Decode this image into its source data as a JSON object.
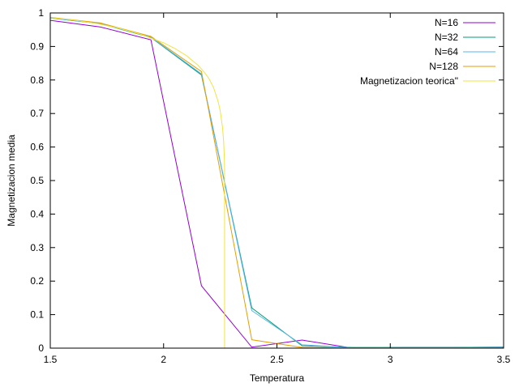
{
  "chart_data": {
    "type": "line",
    "xlabel": "Temperatura",
    "ylabel": "Magnetizacion media",
    "xlim": [
      1.5,
      3.5
    ],
    "ylim": [
      0,
      1
    ],
    "xticks": [
      {
        "v": 1.5,
        "label": "1.5"
      },
      {
        "v": 2,
        "label": "2"
      },
      {
        "v": 2.5,
        "label": "2.5"
      },
      {
        "v": 3,
        "label": "3"
      },
      {
        "v": 3.5,
        "label": "3.5"
      }
    ],
    "yticks": [
      {
        "v": 0,
        "label": "0"
      },
      {
        "v": 0.1,
        "label": "0.1"
      },
      {
        "v": 0.2,
        "label": "0.2"
      },
      {
        "v": 0.3,
        "label": "0.3"
      },
      {
        "v": 0.4,
        "label": "0.4"
      },
      {
        "v": 0.5,
        "label": "0.5"
      },
      {
        "v": 0.6,
        "label": "0.6"
      },
      {
        "v": 0.7,
        "label": "0.7"
      },
      {
        "v": 0.8,
        "label": "0.8"
      },
      {
        "v": 0.9,
        "label": "0.9"
      },
      {
        "v": 1,
        "label": "1"
      }
    ],
    "grid": false,
    "legend_position": "top-right",
    "series": [
      {
        "name": "N=16",
        "color": "#9400d3",
        "x": [
          1.5,
          1.722,
          1.944,
          2.167,
          2.389,
          2.611,
          2.833,
          3.056,
          3.278,
          3.5
        ],
        "y": [
          0.978,
          0.958,
          0.92,
          0.186,
          0.003,
          0.024,
          0.0,
          0.002,
          0.002,
          0.003
        ]
      },
      {
        "name": "N=32",
        "color": "#009e73",
        "x": [
          1.5,
          1.722,
          1.944,
          2.167,
          2.389,
          2.611,
          2.833,
          3.056,
          3.278,
          3.5
        ],
        "y": [
          0.985,
          0.968,
          0.927,
          0.815,
          0.12,
          0.007,
          0.002,
          0.002,
          0.002,
          0.003
        ]
      },
      {
        "name": "N=64",
        "color": "#56b4e9",
        "x": [
          1.5,
          1.722,
          1.944,
          2.167,
          2.389,
          2.611,
          2.833,
          3.056,
          3.278,
          3.5
        ],
        "y": [
          0.985,
          0.968,
          0.928,
          0.818,
          0.112,
          0.01,
          0.001,
          0.001,
          0.001,
          0.002
        ]
      },
      {
        "name": "N=128",
        "color": "#e69f00",
        "x": [
          1.5,
          1.722,
          1.944,
          2.167,
          2.389,
          2.611,
          2.833,
          3.056,
          3.278,
          3.5
        ],
        "y": [
          0.987,
          0.97,
          0.93,
          0.825,
          0.025,
          0.002,
          0.0,
          0.001,
          0.001,
          0.001
        ]
      },
      {
        "name": "Magnetizacion teorica\"",
        "color": "#f0e442",
        "x": [
          1.5,
          1.6,
          1.7,
          1.8,
          1.9,
          2.0,
          2.05,
          2.1,
          2.15,
          2.18,
          2.2,
          2.22,
          2.24,
          2.25,
          2.26,
          2.265,
          2.268,
          2.269,
          2.269
        ],
        "y": [
          0.986,
          0.979,
          0.969,
          0.955,
          0.936,
          0.911,
          0.894,
          0.873,
          0.845,
          0.823,
          0.804,
          0.778,
          0.737,
          0.707,
          0.658,
          0.615,
          0.567,
          0.53,
          0.0
        ]
      }
    ]
  }
}
